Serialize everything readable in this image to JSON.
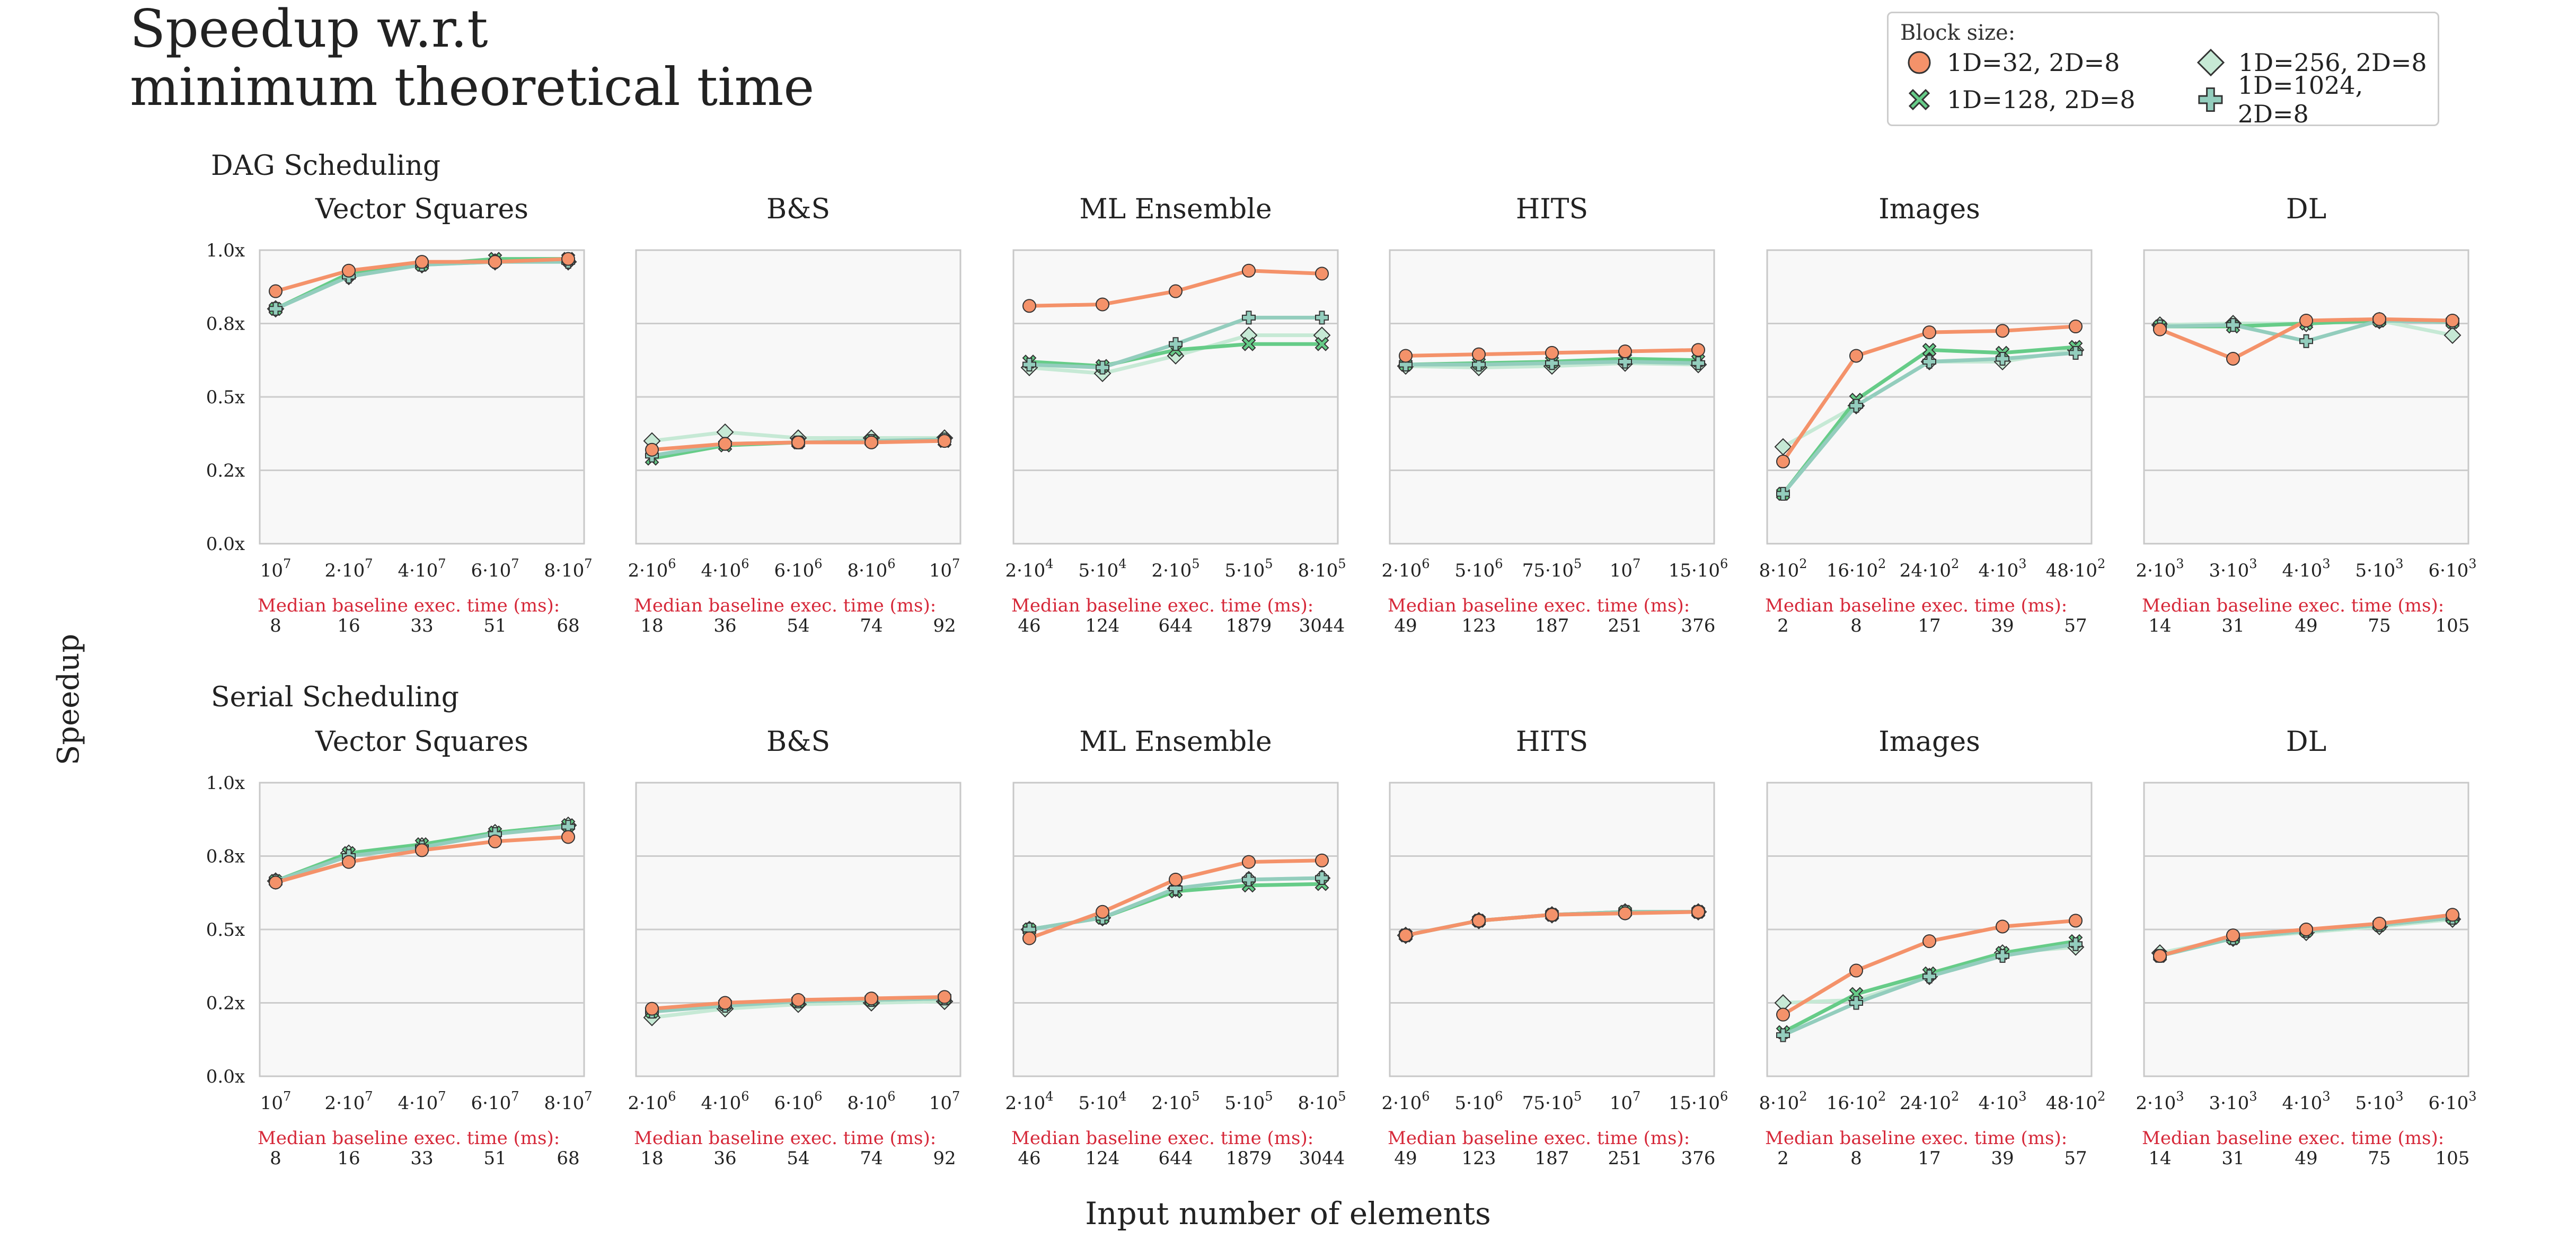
{
  "figure": {
    "title_line1": "Speedup w.r.t",
    "title_line2": "minimum theoretical time",
    "ylabel": "Speedup",
    "xlabel": "Input number of elements",
    "baseline_label": "Median baseline exec. time (ms):"
  },
  "legend": {
    "title": "Block size:",
    "entries": [
      {
        "label": "1D=32, 2D=8",
        "marker": "circle",
        "color": "#f4926a",
        "edge": "#333333"
      },
      {
        "label": "1D=256, 2D=8",
        "marker": "diamond",
        "color": "#c6e9d5",
        "edge": "#333333"
      },
      {
        "label": "1D=128, 2D=8",
        "marker": "x",
        "color": "#66cc88",
        "edge": "#333333"
      },
      {
        "label": "1D=1024, 2D=8",
        "marker": "plus",
        "color": "#93cdbd",
        "edge": "#333333"
      }
    ]
  },
  "chart_data": {
    "type": "line",
    "y_ticks": [
      "0.0x",
      "0.2x",
      "0.5x",
      "0.8x",
      "1.0x"
    ],
    "ylim": [
      0,
      1.0
    ],
    "grid": true,
    "legend_position": "top-right",
    "series_names": [
      "1D=32, 2D=8",
      "1D=128, 2D=8",
      "1D=256, 2D=8",
      "1D=1024, 2D=8"
    ],
    "rows": [
      {
        "title": "DAG Scheduling",
        "panels": [
          {
            "title": "Vector Squares",
            "x_ticks": [
              "10^7",
              "2·10^7",
              "4·10^7",
              "6·10^7",
              "8·10^7"
            ],
            "baseline": [
              "8",
              "16",
              "33",
              "51",
              "68"
            ],
            "series": [
              {
                "name": "1D=32, 2D=8",
                "values": [
                  0.86,
                  0.93,
                  0.96,
                  0.96,
                  0.97
                ]
              },
              {
                "name": "1D=128, 2D=8",
                "values": [
                  0.8,
                  0.92,
                  0.95,
                  0.97,
                  0.97
                ]
              },
              {
                "name": "1D=256, 2D=8",
                "values": [
                  0.8,
                  0.91,
                  0.95,
                  0.96,
                  0.96
                ]
              },
              {
                "name": "1D=1024, 2D=8",
                "values": [
                  0.8,
                  0.91,
                  0.95,
                  0.96,
                  0.96
                ]
              }
            ]
          },
          {
            "title": "B&S",
            "x_ticks": [
              "2·10^6",
              "4·10^6",
              "6·10^6",
              "8·10^6",
              "10^7"
            ],
            "baseline": [
              "18",
              "36",
              "54",
              "74",
              "92"
            ],
            "series": [
              {
                "name": "1D=32, 2D=8",
                "values": [
                  0.32,
                  0.34,
                  0.345,
                  0.345,
                  0.35
                ]
              },
              {
                "name": "1D=128, 2D=8",
                "values": [
                  0.29,
                  0.335,
                  0.345,
                  0.35,
                  0.35
                ]
              },
              {
                "name": "1D=256, 2D=8",
                "values": [
                  0.35,
                  0.38,
                  0.36,
                  0.36,
                  0.36
                ]
              },
              {
                "name": "1D=1024, 2D=8",
                "values": [
                  0.3,
                  0.34,
                  0.345,
                  0.35,
                  0.355
                ]
              }
            ]
          },
          {
            "title": "ML Ensemble",
            "x_ticks": [
              "2·10^4",
              "5·10^4",
              "2·10^5",
              "5·10^5",
              "8·10^5"
            ],
            "baseline": [
              "46",
              "124",
              "644",
              "1879",
              "3044"
            ],
            "series": [
              {
                "name": "1D=32, 2D=8",
                "values": [
                  0.81,
                  0.815,
                  0.86,
                  0.93,
                  0.92
                ]
              },
              {
                "name": "1D=128, 2D=8",
                "values": [
                  0.62,
                  0.605,
                  0.66,
                  0.68,
                  0.68
                ]
              },
              {
                "name": "1D=256, 2D=8",
                "values": [
                  0.6,
                  0.58,
                  0.64,
                  0.71,
                  0.71
                ]
              },
              {
                "name": "1D=1024, 2D=8",
                "values": [
                  0.61,
                  0.6,
                  0.68,
                  0.77,
                  0.77
                ]
              }
            ]
          },
          {
            "title": "HITS",
            "x_ticks": [
              "2·10^6",
              "5·10^6",
              "75·10^5",
              "10^7",
              "15·10^6"
            ],
            "baseline": [
              "49",
              "123",
              "187",
              "251",
              "376"
            ],
            "series": [
              {
                "name": "1D=32, 2D=8",
                "values": [
                  0.64,
                  0.645,
                  0.65,
                  0.655,
                  0.66
                ]
              },
              {
                "name": "1D=128, 2D=8",
                "values": [
                  0.61,
                  0.615,
                  0.62,
                  0.63,
                  0.625
                ]
              },
              {
                "name": "1D=256, 2D=8",
                "values": [
                  0.605,
                  0.6,
                  0.605,
                  0.615,
                  0.61
                ]
              },
              {
                "name": "1D=1024, 2D=8",
                "values": [
                  0.61,
                  0.61,
                  0.615,
                  0.62,
                  0.615
                ]
              }
            ]
          },
          {
            "title": "Images",
            "x_ticks": [
              "8·10^2",
              "16·10^2",
              "24·10^2",
              "4·10^3",
              "48·10^2"
            ],
            "baseline": [
              "2",
              "8",
              "17",
              "39",
              "57"
            ],
            "series": [
              {
                "name": "1D=32, 2D=8",
                "values": [
                  0.28,
                  0.64,
                  0.72,
                  0.725,
                  0.74
                ]
              },
              {
                "name": "1D=128, 2D=8",
                "values": [
                  0.17,
                  0.49,
                  0.66,
                  0.65,
                  0.67
                ]
              },
              {
                "name": "1D=256, 2D=8",
                "values": [
                  0.33,
                  0.47,
                  0.62,
                  0.62,
                  0.66
                ]
              },
              {
                "name": "1D=1024, 2D=8",
                "values": [
                  0.17,
                  0.47,
                  0.62,
                  0.63,
                  0.65
                ]
              }
            ]
          },
          {
            "title": "DL",
            "x_ticks": [
              "2·10^3",
              "3·10^3",
              "4·10^3",
              "5·10^3",
              "6·10^3"
            ],
            "baseline": [
              "14",
              "31",
              "49",
              "75",
              "105"
            ],
            "series": [
              {
                "name": "1D=32, 2D=8",
                "values": [
                  0.73,
                  0.63,
                  0.76,
                  0.765,
                  0.76
                ]
              },
              {
                "name": "1D=128, 2D=8",
                "values": [
                  0.74,
                  0.74,
                  0.75,
                  0.76,
                  0.755
                ]
              },
              {
                "name": "1D=256, 2D=8",
                "values": [
                  0.745,
                  0.75,
                  0.75,
                  0.76,
                  0.71
                ]
              },
              {
                "name": "1D=1024, 2D=8",
                "values": [
                  0.74,
                  0.745,
                  0.69,
                  0.76,
                  0.755
                ]
              }
            ]
          }
        ]
      },
      {
        "title": "Serial Scheduling",
        "panels": [
          {
            "title": "Vector Squares",
            "x_ticks": [
              "10^7",
              "2·10^7",
              "4·10^7",
              "6·10^7",
              "8·10^7"
            ],
            "baseline": [
              "8",
              "16",
              "33",
              "51",
              "68"
            ],
            "series": [
              {
                "name": "1D=32, 2D=8",
                "values": [
                  0.66,
                  0.73,
                  0.77,
                  0.8,
                  0.815
                ]
              },
              {
                "name": "1D=128, 2D=8",
                "values": [
                  0.665,
                  0.76,
                  0.79,
                  0.83,
                  0.855
                ]
              },
              {
                "name": "1D=256, 2D=8",
                "values": [
                  0.665,
                  0.76,
                  0.785,
                  0.83,
                  0.855
                ]
              },
              {
                "name": "1D=1024, 2D=8",
                "values": [
                  0.665,
                  0.75,
                  0.78,
                  0.825,
                  0.85
                ]
              }
            ]
          },
          {
            "title": "B&S",
            "x_ticks": [
              "2·10^6",
              "4·10^6",
              "6·10^6",
              "8·10^6",
              "10^7"
            ],
            "baseline": [
              "18",
              "36",
              "54",
              "74",
              "92"
            ],
            "series": [
              {
                "name": "1D=32, 2D=8",
                "values": [
                  0.23,
                  0.25,
                  0.26,
                  0.265,
                  0.27
                ]
              },
              {
                "name": "1D=128, 2D=8",
                "values": [
                  0.22,
                  0.245,
                  0.255,
                  0.26,
                  0.265
                ]
              },
              {
                "name": "1D=256, 2D=8",
                "values": [
                  0.2,
                  0.23,
                  0.245,
                  0.25,
                  0.255
                ]
              },
              {
                "name": "1D=1024, 2D=8",
                "values": [
                  0.22,
                  0.24,
                  0.255,
                  0.26,
                  0.265
                ]
              }
            ]
          },
          {
            "title": "ML Ensemble",
            "x_ticks": [
              "2·10^4",
              "5·10^4",
              "2·10^5",
              "5·10^5",
              "8·10^5"
            ],
            "baseline": [
              "46",
              "124",
              "644",
              "1879",
              "3044"
            ],
            "series": [
              {
                "name": "1D=32, 2D=8",
                "values": [
                  0.47,
                  0.56,
                  0.67,
                  0.73,
                  0.735
                ]
              },
              {
                "name": "1D=128, 2D=8",
                "values": [
                  0.5,
                  0.54,
                  0.63,
                  0.65,
                  0.655
                ]
              },
              {
                "name": "1D=256, 2D=8",
                "values": [
                  0.5,
                  0.54,
                  0.64,
                  0.67,
                  0.675
                ]
              },
              {
                "name": "1D=1024, 2D=8",
                "values": [
                  0.5,
                  0.54,
                  0.64,
                  0.67,
                  0.675
                ]
              }
            ]
          },
          {
            "title": "HITS",
            "x_ticks": [
              "2·10^6",
              "5·10^6",
              "75·10^5",
              "10^7",
              "15·10^6"
            ],
            "baseline": [
              "49",
              "123",
              "187",
              "251",
              "376"
            ],
            "series": [
              {
                "name": "1D=32, 2D=8",
                "values": [
                  0.48,
                  0.53,
                  0.55,
                  0.555,
                  0.56
                ]
              },
              {
                "name": "1D=128, 2D=8",
                "values": [
                  0.48,
                  0.53,
                  0.55,
                  0.56,
                  0.56
                ]
              },
              {
                "name": "1D=256, 2D=8",
                "values": [
                  0.48,
                  0.53,
                  0.55,
                  0.56,
                  0.56
                ]
              },
              {
                "name": "1D=1024, 2D=8",
                "values": [
                  0.48,
                  0.53,
                  0.55,
                  0.56,
                  0.56
                ]
              }
            ]
          },
          {
            "title": "Images",
            "x_ticks": [
              "8·10^2",
              "16·10^2",
              "24·10^2",
              "4·10^3",
              "48·10^2"
            ],
            "baseline": [
              "2",
              "8",
              "17",
              "39",
              "57"
            ],
            "series": [
              {
                "name": "1D=32, 2D=8",
                "values": [
                  0.21,
                  0.36,
                  0.46,
                  0.51,
                  0.53
                ]
              },
              {
                "name": "1D=128, 2D=8",
                "values": [
                  0.15,
                  0.28,
                  0.35,
                  0.42,
                  0.46
                ]
              },
              {
                "name": "1D=256, 2D=8",
                "values": [
                  0.25,
                  0.26,
                  0.34,
                  0.42,
                  0.44
                ]
              },
              {
                "name": "1D=1024, 2D=8",
                "values": [
                  0.14,
                  0.25,
                  0.34,
                  0.41,
                  0.45
                ]
              }
            ]
          },
          {
            "title": "DL",
            "x_ticks": [
              "2·10^3",
              "3·10^3",
              "4·10^3",
              "5·10^3",
              "6·10^3"
            ],
            "baseline": [
              "14",
              "31",
              "49",
              "75",
              "105"
            ],
            "series": [
              {
                "name": "1D=32, 2D=8",
                "values": [
                  0.41,
                  0.48,
                  0.5,
                  0.52,
                  0.55
                ]
              },
              {
                "name": "1D=128, 2D=8",
                "values": [
                  0.41,
                  0.47,
                  0.495,
                  0.515,
                  0.54
                ]
              },
              {
                "name": "1D=256, 2D=8",
                "values": [
                  0.42,
                  0.47,
                  0.49,
                  0.51,
                  0.535
                ]
              },
              {
                "name": "1D=1024, 2D=8",
                "values": [
                  0.41,
                  0.47,
                  0.495,
                  0.515,
                  0.54
                ]
              }
            ]
          }
        ]
      }
    ]
  }
}
